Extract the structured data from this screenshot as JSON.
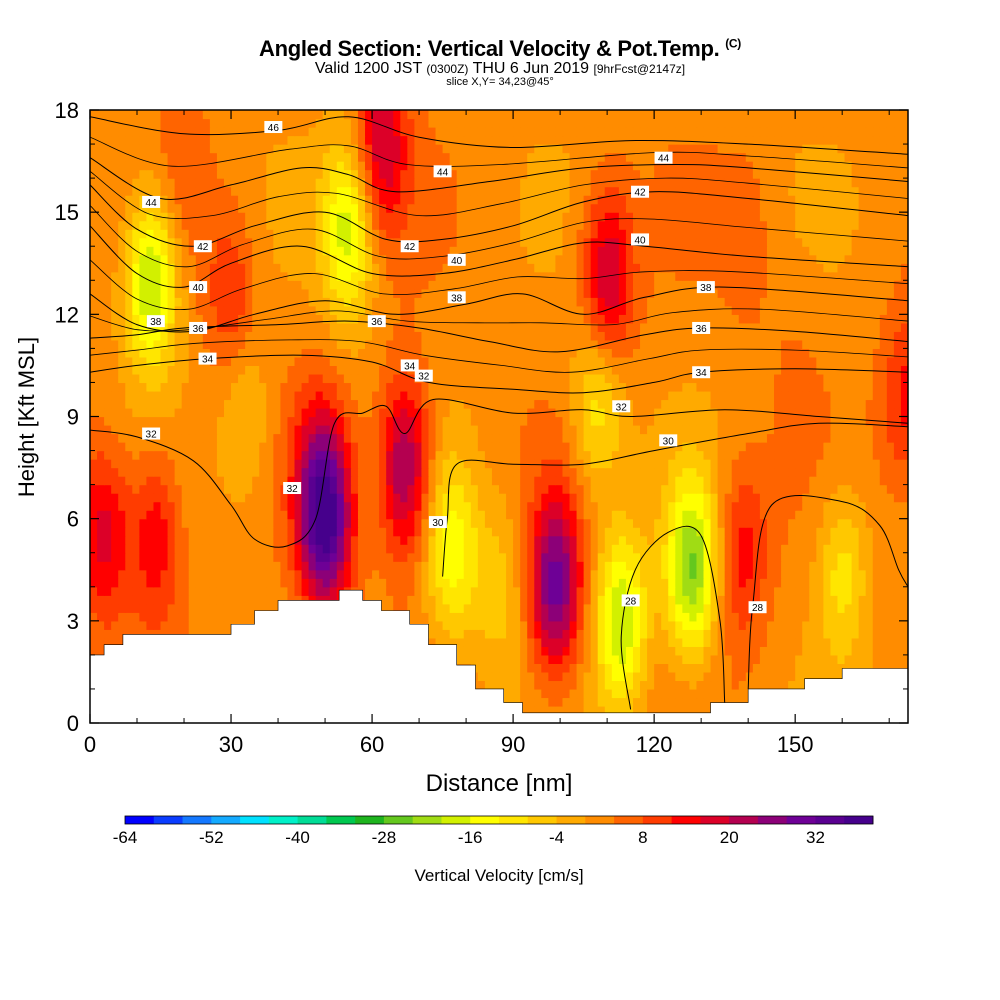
{
  "header": {
    "title_main": "Angled Section: Vertical Velocity & Pot.Temp.",
    "title_mark": "(C)",
    "valid_prefix": "Valid 1200 JST",
    "valid_utc": "(0300Z)",
    "valid_date": "THU 6 Jun 2019",
    "forecast_tag": "[9hrFcst@2147z]",
    "slice_text": "slice X,Y= 34,23@45°"
  },
  "chart_data": {
    "type": "heatmap",
    "xlabel": "Distance [nm]",
    "ylabel": "Height [Kft MSL]",
    "xlim": [
      0,
      174
    ],
    "ylim": [
      0,
      18
    ],
    "x_ticks": [
      0,
      30,
      60,
      90,
      120,
      150
    ],
    "y_ticks": [
      0,
      3,
      6,
      9,
      12,
      15,
      18
    ],
    "colorbar": {
      "label": "Vertical Velocity [cm/s]",
      "tick_labels": [
        -64,
        -52,
        -40,
        -28,
        -16,
        -4,
        8,
        20,
        32
      ],
      "min": -64,
      "max": 40,
      "step": 4,
      "colors": [
        "#0000ff",
        "#0a3cff",
        "#1478ff",
        "#14aaff",
        "#00e1ff",
        "#00f0c8",
        "#00dc96",
        "#00c850",
        "#1eb41e",
        "#64c81e",
        "#a0dc14",
        "#d2f000",
        "#ffff00",
        "#ffe600",
        "#ffc800",
        "#ffaa00",
        "#ff8c00",
        "#ff6400",
        "#ff3c00",
        "#ff0000",
        "#dc0028",
        "#b40050",
        "#8c0078",
        "#6e0096",
        "#5a0091",
        "#46008c"
      ]
    },
    "velocity_cells": [
      {
        "x": 3,
        "y": 5.5,
        "v": 18
      },
      {
        "x": 14,
        "y": 5.5,
        "v": 16
      },
      {
        "x": 13,
        "y": 13,
        "v": -22
      },
      {
        "x": 30,
        "y": 12.5,
        "v": 12
      },
      {
        "x": 33,
        "y": 9,
        "v": -6
      },
      {
        "x": 48,
        "y": 8,
        "v": 8
      },
      {
        "x": 50,
        "y": 6,
        "v": 38
      },
      {
        "x": 55,
        "y": 14.5,
        "v": -18
      },
      {
        "x": 62,
        "y": 17,
        "v": 20
      },
      {
        "x": 67,
        "y": 7.5,
        "v": 26
      },
      {
        "x": 77,
        "y": 5,
        "v": -14
      },
      {
        "x": 87,
        "y": 4,
        "v": -6
      },
      {
        "x": 99,
        "y": 4,
        "v": 30
      },
      {
        "x": 110,
        "y": 13,
        "v": 22
      },
      {
        "x": 113,
        "y": 3,
        "v": -20
      },
      {
        "x": 128,
        "y": 4.5,
        "v": -24
      },
      {
        "x": 139,
        "y": 5,
        "v": 14
      },
      {
        "x": 160,
        "y": 4.5,
        "v": -10
      },
      {
        "x": 174,
        "y": 9.5,
        "v": 14
      },
      {
        "x": 108,
        "y": 9.5,
        "v": -12
      },
      {
        "x": 140,
        "y": 14,
        "v": 6
      },
      {
        "x": 150,
        "y": 11,
        "v": 4
      },
      {
        "x": 100,
        "y": 16,
        "v": 2
      },
      {
        "x": 20,
        "y": 16.5,
        "v": 6
      }
    ],
    "terrain": [
      {
        "x": 0,
        "y": 2.0
      },
      {
        "x": 3,
        "y": 2.3
      },
      {
        "x": 7,
        "y": 2.6
      },
      {
        "x": 25,
        "y": 2.6
      },
      {
        "x": 30,
        "y": 2.9
      },
      {
        "x": 35,
        "y": 3.3
      },
      {
        "x": 40,
        "y": 3.6
      },
      {
        "x": 49,
        "y": 3.6
      },
      {
        "x": 53,
        "y": 3.9
      },
      {
        "x": 58,
        "y": 3.6
      },
      {
        "x": 62,
        "y": 3.3
      },
      {
        "x": 68,
        "y": 2.9
      },
      {
        "x": 72,
        "y": 2.3
      },
      {
        "x": 78,
        "y": 1.7
      },
      {
        "x": 82,
        "y": 1.0
      },
      {
        "x": 88,
        "y": 0.6
      },
      {
        "x": 92,
        "y": 0.3
      },
      {
        "x": 128,
        "y": 0.3
      },
      {
        "x": 132,
        "y": 0.6
      },
      {
        "x": 140,
        "y": 1.0
      },
      {
        "x": 152,
        "y": 1.3
      },
      {
        "x": 160,
        "y": 1.6
      },
      {
        "x": 174,
        "y": 1.6
      }
    ],
    "isentropes": [
      {
        "value": 46,
        "label": "46",
        "points": [
          [
            0,
            17.8
          ],
          [
            20,
            17.3
          ],
          [
            40,
            17.4
          ],
          [
            55,
            17.8
          ],
          [
            70,
            17.2
          ],
          [
            90,
            16.9
          ],
          [
            115,
            17.1
          ],
          [
            140,
            17.0
          ],
          [
            174,
            16.7
          ]
        ]
      },
      {
        "value": 44,
        "label": "44",
        "points": [
          [
            0,
            16.6
          ],
          [
            15,
            15.4
          ],
          [
            30,
            15.8
          ],
          [
            45,
            16.3
          ],
          [
            55,
            16.1
          ],
          [
            65,
            15.6
          ],
          [
            85,
            15.9
          ],
          [
            105,
            16.3
          ],
          [
            125,
            16.4
          ],
          [
            140,
            16.3
          ],
          [
            174,
            15.9
          ]
        ]
      },
      {
        "value": 42,
        "label": "42",
        "points": [
          [
            0,
            15.8
          ],
          [
            10,
            14.5
          ],
          [
            22,
            14.0
          ],
          [
            35,
            14.6
          ],
          [
            50,
            15.0
          ],
          [
            63,
            14.2
          ],
          [
            75,
            14.2
          ],
          [
            90,
            14.6
          ],
          [
            105,
            15.3
          ],
          [
            120,
            15.6
          ],
          [
            140,
            15.4
          ],
          [
            174,
            14.9
          ]
        ]
      },
      {
        "value": 40,
        "label": "40",
        "points": [
          [
            0,
            14.6
          ],
          [
            10,
            13.2
          ],
          [
            20,
            12.8
          ],
          [
            30,
            13.5
          ],
          [
            45,
            14.0
          ],
          [
            60,
            13.2
          ],
          [
            75,
            13.2
          ],
          [
            90,
            13.6
          ],
          [
            105,
            14.1
          ],
          [
            118,
            14.0
          ],
          [
            140,
            13.7
          ],
          [
            174,
            13.4
          ]
        ]
      },
      {
        "value": 38,
        "label": "38",
        "points": [
          [
            0,
            12.6
          ],
          [
            10,
            11.7
          ],
          [
            22,
            11.5
          ],
          [
            35,
            12.0
          ],
          [
            50,
            12.4
          ],
          [
            65,
            12.0
          ],
          [
            80,
            12.3
          ],
          [
            92,
            12.6
          ],
          [
            105,
            12.0
          ],
          [
            118,
            12.5
          ],
          [
            135,
            12.8
          ],
          [
            174,
            12.4
          ]
        ]
      },
      {
        "value": 36,
        "label": "36",
        "points": [
          [
            0,
            11.3
          ],
          [
            10,
            11.4
          ],
          [
            20,
            11.6
          ],
          [
            40,
            11.7
          ],
          [
            55,
            11.8
          ],
          [
            70,
            11.6
          ],
          [
            85,
            11.2
          ],
          [
            100,
            10.9
          ],
          [
            118,
            11.4
          ],
          [
            130,
            11.6
          ],
          [
            150,
            11.5
          ],
          [
            174,
            11.2
          ]
        ]
      },
      {
        "value": 34,
        "label": "34",
        "points": [
          [
            0,
            10.3
          ],
          [
            10,
            10.5
          ],
          [
            25,
            10.7
          ],
          [
            45,
            10.8
          ],
          [
            60,
            10.6
          ],
          [
            72,
            10.0
          ],
          [
            90,
            9.8
          ],
          [
            105,
            9.7
          ],
          [
            120,
            10.0
          ],
          [
            130,
            10.3
          ],
          [
            150,
            10.4
          ],
          [
            174,
            10.3
          ]
        ]
      },
      {
        "value": 32,
        "label": "32",
        "points": [
          [
            0,
            8.6
          ],
          [
            10,
            8.4
          ],
          [
            22,
            7.7
          ],
          [
            30,
            6.4
          ],
          [
            35,
            5.4
          ],
          [
            42,
            5.2
          ],
          [
            48,
            6.0
          ],
          [
            52,
            8.8
          ],
          [
            58,
            9.1
          ],
          [
            63,
            9.3
          ],
          [
            67,
            8.5
          ],
          [
            73,
            9.5
          ],
          [
            90,
            9.1
          ],
          [
            105,
            9.2
          ],
          [
            115,
            9.0
          ],
          [
            135,
            9.2
          ],
          [
            155,
            9.0
          ],
          [
            174,
            8.8
          ]
        ]
      },
      {
        "value": 30,
        "label": "30",
        "points": [
          [
            75,
            4.3
          ],
          [
            76,
            6.0
          ],
          [
            78,
            7.6
          ],
          [
            90,
            7.6
          ],
          [
            105,
            7.6
          ],
          [
            120,
            8.0
          ],
          [
            140,
            8.5
          ],
          [
            155,
            8.8
          ],
          [
            174,
            8.7
          ]
        ]
      },
      {
        "value": 28,
        "label": "28",
        "points": [
          [
            115,
            0.4
          ],
          [
            113,
            2.5
          ],
          [
            116,
            4.5
          ],
          [
            123,
            5.6
          ],
          [
            130,
            5.5
          ],
          [
            134,
            3.0
          ],
          [
            135,
            0.6
          ]
        ]
      },
      {
        "value": 28,
        "label": "28",
        "points": [
          [
            140,
            1.0
          ],
          [
            141,
            3.5
          ],
          [
            145,
            6.4
          ],
          [
            160,
            6.5
          ],
          [
            168,
            5.8
          ],
          [
            172,
            4.5
          ],
          [
            174,
            4.0
          ]
        ]
      }
    ],
    "contour_labels": [
      {
        "text": "46",
        "x": 39,
        "y": 17.5
      },
      {
        "text": "44",
        "x": 13,
        "y": 15.3
      },
      {
        "text": "44",
        "x": 75,
        "y": 16.2
      },
      {
        "text": "44",
        "x": 122,
        "y": 16.6
      },
      {
        "text": "42",
        "x": 24,
        "y": 14.0
      },
      {
        "text": "42",
        "x": 68,
        "y": 14.0
      },
      {
        "text": "42",
        "x": 117,
        "y": 15.6
      },
      {
        "text": "40",
        "x": 23,
        "y": 12.8
      },
      {
        "text": "40",
        "x": 78,
        "y": 13.6
      },
      {
        "text": "40",
        "x": 117,
        "y": 14.2
      },
      {
        "text": "38",
        "x": 14,
        "y": 11.8
      },
      {
        "text": "38",
        "x": 78,
        "y": 12.5
      },
      {
        "text": "38",
        "x": 131,
        "y": 12.8
      },
      {
        "text": "36",
        "x": 23,
        "y": 11.6
      },
      {
        "text": "36",
        "x": 61,
        "y": 11.8
      },
      {
        "text": "36",
        "x": 130,
        "y": 11.6
      },
      {
        "text": "34",
        "x": 25,
        "y": 10.7
      },
      {
        "text": "34",
        "x": 68,
        "y": 10.5
      },
      {
        "text": "34",
        "x": 130,
        "y": 10.3
      },
      {
        "text": "32",
        "x": 13,
        "y": 8.5
      },
      {
        "text": "32",
        "x": 43,
        "y": 6.9
      },
      {
        "text": "32",
        "x": 71,
        "y": 10.2
      },
      {
        "text": "32",
        "x": 113,
        "y": 9.3
      },
      {
        "text": "30",
        "x": 123,
        "y": 8.3
      },
      {
        "text": "30",
        "x": 74,
        "y": 5.9
      },
      {
        "text": "28",
        "x": 115,
        "y": 3.6
      },
      {
        "text": "28",
        "x": 142,
        "y": 3.4
      }
    ]
  }
}
